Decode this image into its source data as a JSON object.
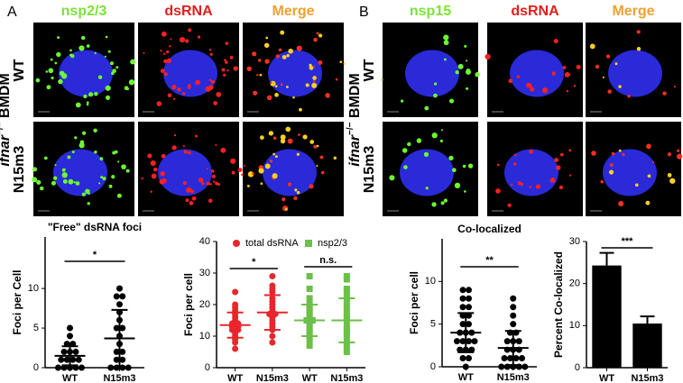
{
  "panels": {
    "A": {
      "letter": "A",
      "headers": [
        "nsp2/3",
        "dsRNA",
        "Merge"
      ],
      "rows": [
        "WT",
        "N15m3"
      ],
      "side": [
        "ifnar",
        "−/−",
        "BMDM"
      ]
    },
    "B": {
      "letter": "B",
      "headers": [
        "nsp15",
        "dsRNA",
        "Merge"
      ],
      "rows": [
        "WT",
        "N15m3"
      ],
      "side": [
        "ifnar",
        "−/−",
        "BMDM"
      ]
    }
  },
  "chart_data": [
    {
      "type": "dot",
      "title": "\"Free\" dsRNA foci",
      "ylabel": "Foci per Cell",
      "categories": [
        "WT",
        "N15m3"
      ],
      "ylim": [
        0,
        16.5
      ],
      "yticks": [
        0,
        5,
        10
      ],
      "series": [
        {
          "color": "#000000",
          "marker": "circle",
          "points": [
            [
              0,
              0,
              0,
              0,
              0,
              1,
              1,
              1,
              1,
              2,
              2,
              2,
              3,
              3,
              4,
              5
            ],
            [
              0,
              0,
              0,
              0,
              1,
              1,
              2,
              2,
              3,
              4,
              5,
              5,
              6,
              7,
              8,
              9,
              9,
              10
            ]
          ],
          "mean": [
            1.5,
            3.7
          ],
          "sd": [
            1.2,
            3.6
          ]
        }
      ],
      "annotations": [
        {
          "text": "*",
          "from": 0,
          "to": 1
        }
      ]
    },
    {
      "type": "dot",
      "ylabel": "Foci per cell",
      "categories": [
        "WT",
        "N15m3",
        "WT",
        "N15m3"
      ],
      "ylim": [
        0,
        40
      ],
      "yticks": [
        0,
        10,
        20,
        30,
        40
      ],
      "series": [
        {
          "name": "total dsRNA",
          "color": "#e8262c",
          "marker": "circle",
          "points": [
            [
              6,
              8,
              9,
              10,
              11,
              12,
              12,
              13,
              13,
              14,
              14,
              15,
              16,
              17,
              18,
              19,
              20,
              24
            ],
            [
              8,
              10,
              12,
              13,
              14,
              15,
              16,
              17,
              17,
              18,
              19,
              20,
              21,
              22,
              24,
              25,
              26,
              29
            ],
            null,
            null
          ],
          "mean": [
            13.5,
            17.5,
            null,
            null
          ],
          "sd": [
            4,
            5.5,
            null,
            null
          ]
        },
        {
          "name": "nsp2/3",
          "color": "#6cc04a",
          "marker": "square",
          "points": [
            null,
            null,
            [
              7,
              9,
              10,
              11,
              12,
              13,
              14,
              15,
              15,
              16,
              17,
              18,
              19,
              20,
              22,
              25,
              29
            ],
            [
              5,
              7,
              8,
              10,
              11,
              12,
              13,
              15,
              16,
              17,
              18,
              20,
              22,
              24,
              25,
              28,
              29
            ]
          ],
          "mean": [
            null,
            null,
            15,
            15
          ],
          "sd": [
            null,
            null,
            5,
            7
          ]
        }
      ],
      "annotations": [
        {
          "text": "*",
          "from": 0,
          "to": 1
        },
        {
          "text": "n.s.",
          "from": 2,
          "to": 3
        }
      ]
    },
    {
      "type": "dot",
      "title": "Co-localized",
      "ylabel": "Foci per cell",
      "categories": [
        "WT",
        "N15m3"
      ],
      "ylim": [
        0,
        15
      ],
      "yticks": [
        0,
        5,
        10
      ],
      "series": [
        {
          "color": "#000000",
          "marker": "circle",
          "points": [
            [
              0,
              1,
              1,
              2,
              2,
              2,
              3,
              3,
              3,
              3,
              4,
              4,
              4,
              5,
              5,
              6,
              6,
              7,
              7,
              8,
              8,
              9,
              9
            ],
            [
              0,
              0,
              0,
              0,
              0,
              1,
              1,
              1,
              1,
              2,
              2,
              2,
              3,
              3,
              3,
              4,
              4,
              5,
              6,
              7,
              8
            ]
          ],
          "mean": [
            4,
            2.2
          ],
          "sd": [
            2.3,
            2
          ]
        }
      ],
      "annotations": [
        {
          "text": "**",
          "from": 0,
          "to": 1
        }
      ]
    },
    {
      "type": "bar",
      "ylabel": "Percent Co-localized",
      "categories": [
        "WT",
        "N15m3"
      ],
      "ylim": [
        0,
        30
      ],
      "yticks": [
        0,
        10,
        20,
        30
      ],
      "color": "#000000",
      "values": [
        24.3,
        10.5
      ],
      "errors": [
        3,
        1.7
      ],
      "annotations": [
        {
          "text": "***",
          "from": 0,
          "to": 1
        }
      ]
    }
  ]
}
